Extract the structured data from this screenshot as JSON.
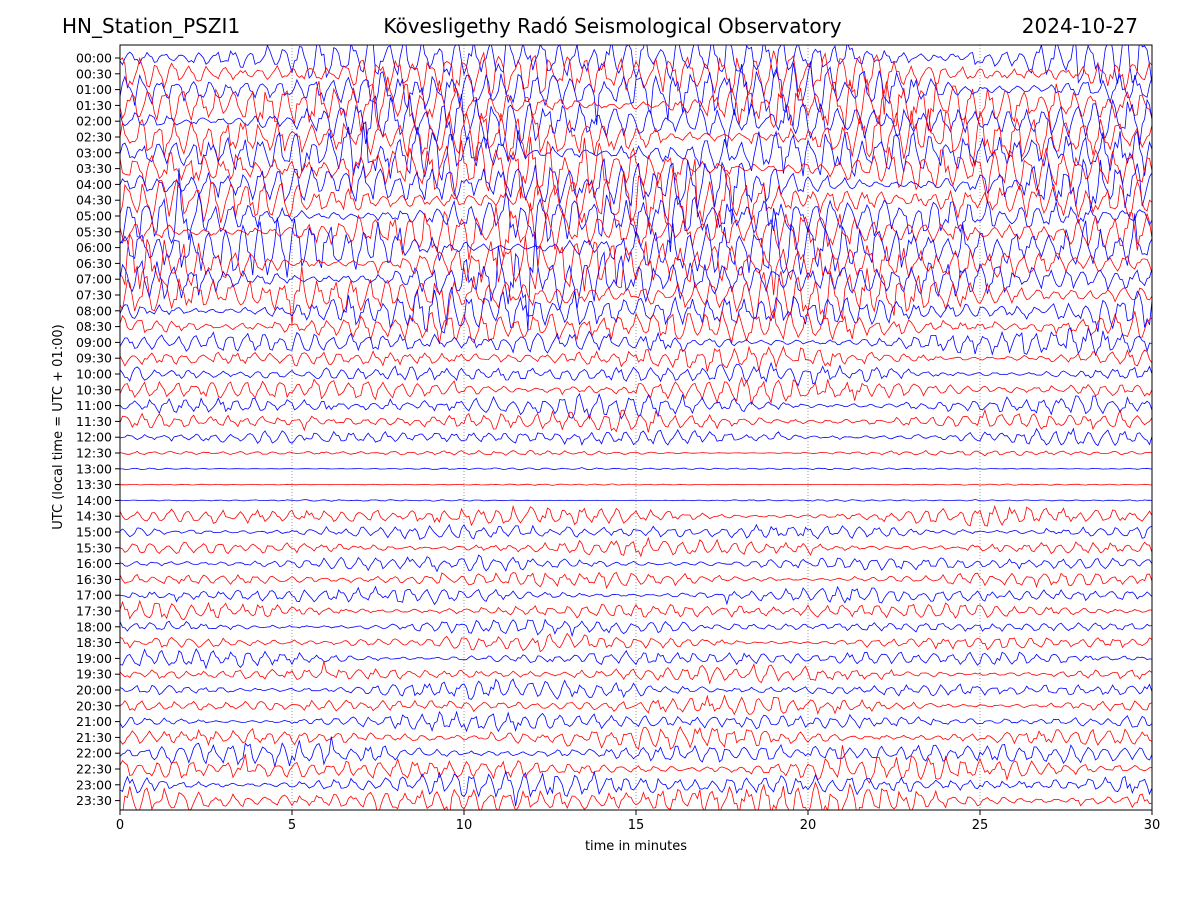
{
  "header": {
    "station": "HN_Station_PSZI1",
    "title": "Kövesligethy Radó Seismological Observatory",
    "date": "2024-10-27"
  },
  "chart_data": {
    "type": "line",
    "subtype": "helicorder",
    "xlabel": "time in minutes",
    "ylabel": "UTC (local time = UTC + 01:00)",
    "xlim": [
      0,
      30
    ],
    "xticks": [
      0,
      5,
      10,
      15,
      20,
      25,
      30
    ],
    "xtick_labels": [
      "0",
      "5",
      "10",
      "15",
      "20",
      "25",
      "30"
    ],
    "grid_x": [
      5,
      10,
      15,
      20,
      25
    ],
    "trace_colors": [
      "#0000ff",
      "#ff0000"
    ],
    "rows": [
      "00:00",
      "00:30",
      "01:00",
      "01:30",
      "02:00",
      "02:30",
      "03:00",
      "03:30",
      "04:00",
      "04:30",
      "05:00",
      "05:30",
      "06:00",
      "06:30",
      "07:00",
      "07:30",
      "08:00",
      "08:30",
      "09:00",
      "09:30",
      "10:00",
      "10:30",
      "11:00",
      "11:30",
      "12:00",
      "12:30",
      "13:00",
      "13:30",
      "14:00",
      "14:30",
      "15:00",
      "15:30",
      "16:00",
      "16:30",
      "17:00",
      "17:30",
      "18:00",
      "18:30",
      "19:00",
      "19:30",
      "20:00",
      "20:30",
      "21:00",
      "21:30",
      "22:00",
      "22:30",
      "23:00",
      "23:30"
    ],
    "row_activity": [
      1.0,
      1.0,
      1.0,
      1.0,
      1.0,
      1.0,
      1.0,
      1.0,
      1.0,
      1.0,
      1.0,
      1.0,
      1.0,
      1.0,
      0.95,
      0.9,
      0.8,
      0.7,
      0.45,
      0.42,
      0.42,
      0.45,
      0.42,
      0.4,
      0.3,
      0.08,
      0.03,
      0.01,
      0.02,
      0.35,
      0.3,
      0.28,
      0.28,
      0.28,
      0.3,
      0.3,
      0.28,
      0.28,
      0.3,
      0.3,
      0.32,
      0.32,
      0.36,
      0.4,
      0.42,
      0.45,
      0.5,
      0.6
    ]
  }
}
